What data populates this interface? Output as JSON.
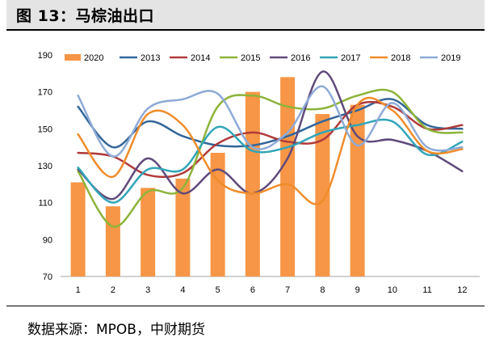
{
  "header": {
    "title": "图 13：马棕油出口"
  },
  "source": {
    "text": "数据来源：MPOB，中财期货"
  },
  "chart_data": {
    "type": "bar+line",
    "categories": [
      "1",
      "2",
      "3",
      "4",
      "5",
      "6",
      "7",
      "8",
      "9",
      "10",
      "11",
      "12"
    ],
    "ylim": [
      70,
      190
    ],
    "yticks": [
      70,
      90,
      110,
      130,
      150,
      170,
      190
    ],
    "grid": false,
    "legend_position": "top",
    "bar_series": {
      "name": "2020",
      "color": "#f79646",
      "values": [
        121,
        108,
        118,
        123,
        137,
        170,
        178,
        158,
        163,
        null,
        null,
        null
      ]
    },
    "series": [
      {
        "name": "2013",
        "color": "#336699",
        "values": [
          162,
          140,
          154,
          146,
          141,
          141,
          146,
          154,
          160,
          166,
          152,
          150
        ]
      },
      {
        "name": "2014",
        "color": "#b03a3a",
        "values": [
          137,
          135,
          125,
          126,
          142,
          148,
          143,
          144,
          163,
          162,
          150,
          152
        ]
      },
      {
        "name": "2015",
        "color": "#8db43a",
        "values": [
          127,
          97,
          116,
          118,
          162,
          168,
          162,
          161,
          168,
          170,
          150,
          148
        ]
      },
      {
        "name": "2016",
        "color": "#604a7b",
        "values": [
          128,
          112,
          134,
          115,
          128,
          115,
          134,
          181,
          146,
          144,
          138,
          127
        ]
      },
      {
        "name": "2017",
        "color": "#31a5b8",
        "values": [
          129,
          110,
          128,
          128,
          151,
          138,
          140,
          148,
          152,
          154,
          136,
          143
        ]
      },
      {
        "name": "2018",
        "color": "#f08c2a",
        "values": [
          147,
          124,
          158,
          152,
          122,
          115,
          120,
          111,
          163,
          160,
          138,
          139
        ]
      },
      {
        "name": "2019",
        "color": "#8eaad6",
        "values": [
          168,
          135,
          161,
          166,
          169,
          140,
          148,
          173,
          141,
          164,
          140,
          140
        ]
      }
    ]
  }
}
